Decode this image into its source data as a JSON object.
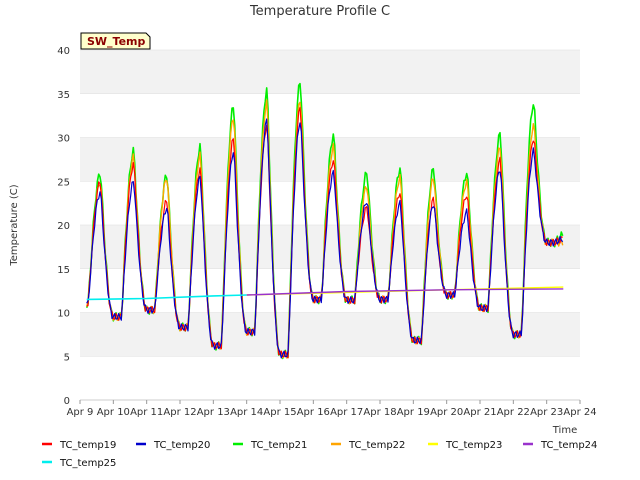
{
  "chart_data": {
    "type": "line",
    "title": "Temperature Profile C",
    "xlabel": "Time",
    "ylabel": "Temperature (C)",
    "ylim": [
      0,
      40
    ],
    "y_ticks": [
      0,
      5,
      10,
      15,
      20,
      25,
      30,
      35,
      40
    ],
    "xlim": [
      "2023-04-09",
      "2023-04-24"
    ],
    "x_ticks": [
      "Apr 9",
      "Apr 10",
      "Apr 11",
      "Apr 12",
      "Apr 13",
      "Apr 14",
      "Apr 15",
      "Apr 16",
      "Apr 17",
      "Apr 18",
      "Apr 19",
      "Apr 20",
      "Apr 21",
      "Apr 22",
      "Apr 23",
      "Apr 24"
    ],
    "grid": "horizontal bands",
    "legend_position": "bottom",
    "annotation": "SW_Temp",
    "colors": {
      "TC_temp19": "#ff0000",
      "TC_temp20": "#0000cc",
      "TC_temp21": "#00ee00",
      "TC_temp22": "#ffa500",
      "TC_temp23": "#ffff00",
      "TC_temp24": "#9932cc",
      "TC_temp25": "#00eeee"
    },
    "daily": {
      "days": [
        "Apr 9",
        "Apr 10",
        "Apr 11",
        "Apr 12",
        "Apr 13",
        "Apr 14",
        "Apr 15",
        "Apr 16",
        "Apr 17",
        "Apr 18",
        "Apr 19",
        "Apr 20",
        "Apr 21",
        "Apr 22",
        "Apr 23"
      ],
      "min_temp": [
        11.0,
        9.5,
        10.3,
        8.3,
        6.2,
        7.8,
        5.2,
        11.5,
        11.4,
        11.5,
        6.8,
        12.0,
        10.5,
        7.5,
        18.0
      ],
      "TC_temp19_max": [
        25.0,
        27.0,
        22.8,
        26.5,
        30.0,
        31.5,
        33.5,
        27.5,
        22.0,
        23.8,
        23.0,
        23.5,
        27.5,
        30.0,
        18.5
      ],
      "TC_temp20_max": [
        23.8,
        25.0,
        22.0,
        25.5,
        28.5,
        32.0,
        32.0,
        26.0,
        22.8,
        22.5,
        22.5,
        21.5,
        26.5,
        28.5,
        18.5
      ],
      "TC_temp21_max": [
        26.0,
        28.5,
        25.8,
        29.0,
        33.8,
        35.5,
        36.5,
        30.3,
        26.0,
        26.5,
        26.5,
        26.0,
        30.5,
        34.0,
        19.0
      ],
      "TC_temp22_max": [
        25.0,
        27.8,
        25.5,
        28.0,
        32.5,
        34.0,
        34.5,
        29.0,
        24.5,
        25.5,
        25.5,
        25.0,
        29.0,
        31.5,
        18.0
      ]
    },
    "series": [
      {
        "name": "TC_temp23",
        "x": [
          "2023-04-14",
          "2023-04-17",
          "2023-04-20",
          "2023-04-23.5"
        ],
        "y": [
          12.0,
          12.3,
          12.6,
          12.9
        ]
      },
      {
        "name": "TC_temp24",
        "x": [
          "2023-04-14",
          "2023-04-17",
          "2023-04-20",
          "2023-04-23.5"
        ],
        "y": [
          12.0,
          12.4,
          12.6,
          12.7
        ]
      },
      {
        "name": "TC_temp25",
        "x": [
          "2023-04-09.2",
          "2023-04-11",
          "2023-04-13",
          "2023-04-14"
        ],
        "y": [
          11.5,
          11.6,
          11.9,
          12.0
        ]
      }
    ]
  },
  "legend": [
    {
      "name": "TC_temp19",
      "color": "#ff0000"
    },
    {
      "name": "TC_temp20",
      "color": "#0000cc"
    },
    {
      "name": "TC_temp21",
      "color": "#00ee00"
    },
    {
      "name": "TC_temp22",
      "color": "#ffa500"
    },
    {
      "name": "TC_temp23",
      "color": "#ffff00"
    },
    {
      "name": "TC_temp24",
      "color": "#9932cc"
    },
    {
      "name": "TC_temp25",
      "color": "#00eeee"
    }
  ]
}
